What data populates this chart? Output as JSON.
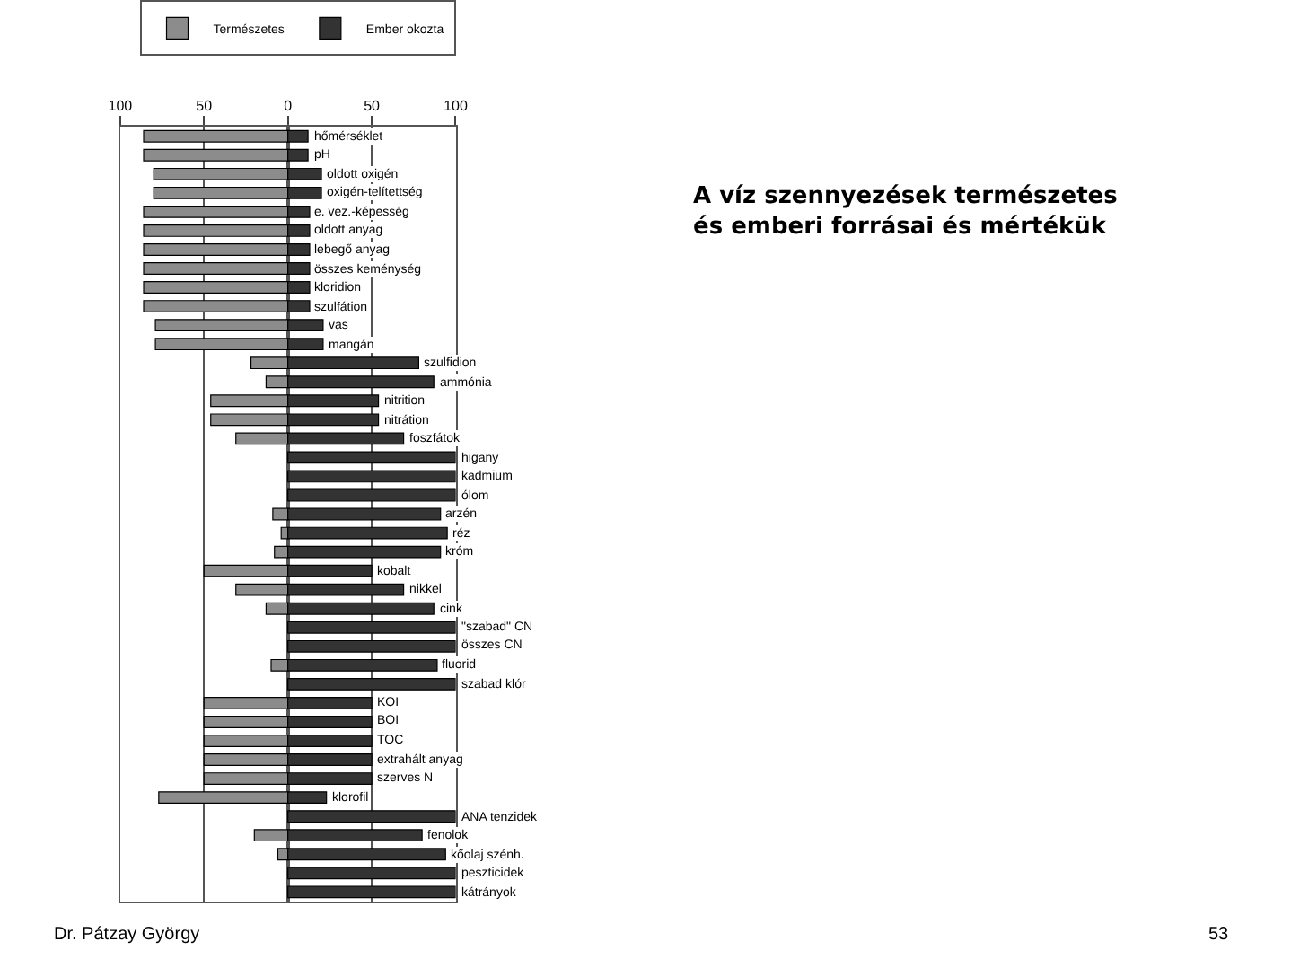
{
  "chart_data": {
    "type": "bar",
    "orientation": "horizontal",
    "stacked": true,
    "title": "A víz szennyezések természetes\nés emberi forrásai és mértékük",
    "categories": [
      "hőmérséklet",
      "pH",
      "oldott oxigén",
      "oxigén-telítettség",
      "e. vez.-képesség",
      "oldott anyag",
      "lebegő anyag",
      "összes keménység",
      "kloridion",
      "szulfátion",
      "vas",
      "mangán",
      "szulfidion",
      "ammónia",
      "nitrition",
      "nitrátion",
      "foszfátok",
      "higany",
      "kadmium",
      "ólom",
      "arzén",
      "réz",
      "króm",
      "kobalt",
      "nikkel",
      "cink",
      "\"szabad\" CN",
      "összes CN",
      "fluorid",
      "szabad klór",
      "KOI",
      "BOI",
      "TOC",
      "extrahált anyag",
      "szerves N",
      "klorofil",
      "ANA tenzidek",
      "fenolok",
      "kőolaj szénh.",
      "peszticidek",
      "kátrányok"
    ],
    "series": [
      {
        "name": "Természetes",
        "color": "#8c8c8c",
        "values": [
          -86,
          -86,
          -80,
          -80,
          -86,
          -86,
          -86,
          -86,
          -86,
          -86,
          -79,
          -79,
          -22,
          -13,
          -46,
          -46,
          -31,
          0,
          0,
          0,
          -9,
          -4,
          -8,
          -50,
          -31,
          -13,
          0,
          0,
          -10,
          0,
          -50,
          -50,
          -50,
          -50,
          -50,
          -77,
          0,
          -20,
          -6,
          0,
          0
        ]
      },
      {
        "name": "Ember okozta",
        "color": "#333333",
        "values": [
          12,
          12,
          20,
          20,
          13,
          13,
          13,
          13,
          13,
          13,
          21,
          21,
          78,
          87,
          54,
          54,
          69,
          100,
          100,
          100,
          91,
          95,
          91,
          50,
          69,
          87,
          100,
          100,
          89,
          100,
          50,
          50,
          50,
          50,
          50,
          23,
          100,
          80,
          94,
          100,
          100
        ]
      }
    ],
    "xlim": [
      -100,
      100
    ],
    "xticks": [
      {
        "value": -100,
        "label": "100"
      },
      {
        "value": -50,
        "label": "50"
      },
      0,
      50,
      100
    ],
    "grid": "x",
    "legend": "top",
    "tick_labels": "x",
    "annotations": [
      "Dr. Pátzay György",
      "53"
    ]
  }
}
